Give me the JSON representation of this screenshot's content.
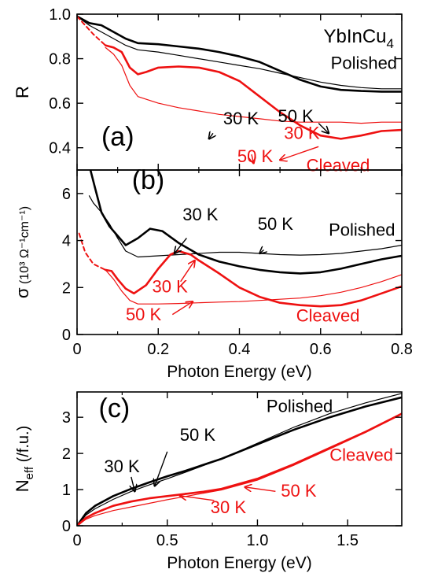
{
  "chart_data": [
    {
      "panel": "(a)",
      "type": "line",
      "title": "YbInCu",
      "title_sub": "4",
      "ylabel": "R",
      "xlabel": "",
      "xlim": [
        0,
        0.8
      ],
      "ylim": [
        0.3,
        1.0
      ],
      "yticks": [
        0.4,
        0.6,
        0.8,
        1.0
      ],
      "ytick_labels": [
        "0.4",
        "0.6",
        "0.8",
        "1.0"
      ],
      "xticks": [
        0,
        0.2,
        0.4,
        0.6,
        0.8
      ],
      "series": [
        {
          "name": "Polished 30 K",
          "color": "#000000",
          "width": 2.6,
          "x": [
            0,
            0.03,
            0.06,
            0.09,
            0.12,
            0.15,
            0.2,
            0.25,
            0.3,
            0.35,
            0.4,
            0.45,
            0.5,
            0.55,
            0.6,
            0.65,
            0.7,
            0.75,
            0.8
          ],
          "y": [
            0.99,
            0.96,
            0.95,
            0.92,
            0.89,
            0.87,
            0.865,
            0.855,
            0.845,
            0.83,
            0.81,
            0.785,
            0.745,
            0.705,
            0.675,
            0.66,
            0.655,
            0.652,
            0.652
          ]
        },
        {
          "name": "Polished 50 K",
          "color": "#000000",
          "width": 1.2,
          "x": [
            0,
            0.03,
            0.06,
            0.09,
            0.12,
            0.15,
            0.2,
            0.25,
            0.3,
            0.35,
            0.4,
            0.45,
            0.5,
            0.55,
            0.6,
            0.65,
            0.7,
            0.75,
            0.8
          ],
          "y": [
            0.99,
            0.95,
            0.92,
            0.89,
            0.86,
            0.84,
            0.83,
            0.815,
            0.8,
            0.785,
            0.77,
            0.755,
            0.735,
            0.715,
            0.695,
            0.68,
            0.67,
            0.665,
            0.665
          ]
        },
        {
          "name": "Cleaved 30 K",
          "color": "#ee1111",
          "width": 2.6,
          "x": [
            0.07,
            0.09,
            0.11,
            0.13,
            0.15,
            0.17,
            0.2,
            0.25,
            0.3,
            0.35,
            0.4,
            0.45,
            0.5,
            0.55,
            0.6,
            0.65,
            0.7,
            0.75,
            0.8
          ],
          "y": [
            0.86,
            0.85,
            0.83,
            0.76,
            0.73,
            0.74,
            0.76,
            0.765,
            0.76,
            0.74,
            0.7,
            0.63,
            0.56,
            0.5,
            0.455,
            0.44,
            0.455,
            0.475,
            0.48
          ]
        },
        {
          "name": "Cleaved 50 K",
          "color": "#ee1111",
          "width": 1.2,
          "x": [
            0.07,
            0.09,
            0.11,
            0.13,
            0.15,
            0.2,
            0.25,
            0.3,
            0.35,
            0.4,
            0.45,
            0.5,
            0.55,
            0.6,
            0.65,
            0.7,
            0.75,
            0.8
          ],
          "y": [
            0.85,
            0.82,
            0.77,
            0.68,
            0.63,
            0.6,
            0.58,
            0.565,
            0.55,
            0.54,
            0.53,
            0.52,
            0.515,
            0.515,
            0.515,
            0.51,
            0.515,
            0.515
          ]
        },
        {
          "name": "Cleaved extrapolation",
          "color": "#ee1111",
          "width": 2.0,
          "dash": "5,4",
          "x": [
            0,
            0.02,
            0.04,
            0.07
          ],
          "y": [
            0.99,
            0.95,
            0.91,
            0.86
          ]
        }
      ],
      "annotations": [
        {
          "text": "(a)",
          "color": "#000000",
          "size": 34,
          "x": 0.06,
          "y": 0.41
        },
        {
          "text": "Polished",
          "color": "#000000",
          "size": 22,
          "x": 0.625,
          "y": 0.755
        },
        {
          "text": "Cleaved",
          "color": "#ee1111",
          "size": 22,
          "x": 0.565,
          "y": 0.295
        },
        {
          "text": "30 K",
          "color": "#000000",
          "size": 22,
          "x": 0.36,
          "y": 0.505
        },
        {
          "text": "50 K",
          "color": "#000000",
          "size": 22,
          "x": 0.495,
          "y": 0.515
        },
        {
          "text": "30 K",
          "color": "#ee1111",
          "size": 22,
          "x": 0.51,
          "y": 0.44
        },
        {
          "text": "50 K",
          "color": "#ee1111",
          "size": 22,
          "x": 0.395,
          "y": 0.335
        }
      ],
      "arrows": [
        {
          "color": "#000000",
          "x1": 0.335,
          "y1": 0.465,
          "x2": 0.325,
          "y2": 0.44
        },
        {
          "color": "#000000",
          "x1": 0.595,
          "y1": 0.51,
          "x2": 0.62,
          "y2": 0.465
        },
        {
          "color": "#ee1111",
          "x1": 0.595,
          "y1": 0.405,
          "x2": 0.5,
          "y2": 0.345
        },
        {
          "color": "#ee1111",
          "x1": 0.43,
          "y1": 0.37,
          "x2": 0.435,
          "y2": 0.33
        }
      ]
    },
    {
      "panel": "(b)",
      "type": "line",
      "ylabel": "σ",
      "yunit": "(10³ Ω⁻¹cm⁻¹)",
      "xlabel": "Photon Energy (eV)",
      "xlim": [
        0,
        0.8
      ],
      "ylim": [
        0,
        7
      ],
      "yticks": [
        0,
        2,
        4,
        6
      ],
      "ytick_labels": [
        "0",
        "2",
        "4",
        "6"
      ],
      "xticks": [
        0,
        0.2,
        0.4,
        0.6,
        0.8
      ],
      "xtick_labels": [
        "0",
        "0.2",
        "0.4",
        "0.6",
        "0.8"
      ],
      "series": [
        {
          "name": "Polished 30 K",
          "color": "#000000",
          "width": 2.6,
          "x": [
            0.03,
            0.045,
            0.06,
            0.08,
            0.1,
            0.12,
            0.15,
            0.18,
            0.21,
            0.25,
            0.3,
            0.35,
            0.4,
            0.45,
            0.5,
            0.55,
            0.6,
            0.65,
            0.7,
            0.75,
            0.8
          ],
          "y": [
            7.2,
            6.2,
            5.2,
            4.6,
            4.2,
            3.8,
            4.1,
            4.5,
            4.4,
            3.9,
            3.4,
            3.1,
            2.9,
            2.75,
            2.65,
            2.6,
            2.65,
            2.8,
            3.0,
            3.2,
            3.35
          ]
        },
        {
          "name": "Polished 50 K",
          "color": "#000000",
          "width": 1.2,
          "x": [
            0.03,
            0.04,
            0.06,
            0.08,
            0.1,
            0.12,
            0.15,
            0.2,
            0.25,
            0.3,
            0.35,
            0.4,
            0.45,
            0.5,
            0.55,
            0.6,
            0.65,
            0.7,
            0.75,
            0.8
          ],
          "y": [
            5.9,
            5.6,
            5.2,
            4.7,
            4.1,
            3.55,
            3.3,
            3.35,
            3.4,
            3.45,
            3.5,
            3.5,
            3.45,
            3.4,
            3.38,
            3.4,
            3.45,
            3.55,
            3.65,
            3.8
          ]
        },
        {
          "name": "Cleaved 30 K",
          "color": "#ee1111",
          "width": 2.6,
          "x": [
            0.07,
            0.085,
            0.1,
            0.12,
            0.14,
            0.17,
            0.2,
            0.23,
            0.25,
            0.28,
            0.3,
            0.35,
            0.4,
            0.45,
            0.5,
            0.55,
            0.6,
            0.65,
            0.7,
            0.75,
            0.8
          ],
          "y": [
            2.75,
            2.7,
            2.35,
            1.95,
            1.75,
            2.1,
            2.8,
            3.4,
            3.55,
            3.4,
            3.15,
            2.6,
            2.0,
            1.6,
            1.35,
            1.25,
            1.2,
            1.25,
            1.45,
            1.75,
            2.05
          ]
        },
        {
          "name": "Cleaved 50 K",
          "color": "#ee1111",
          "width": 1.2,
          "x": [
            0.07,
            0.09,
            0.11,
            0.13,
            0.15,
            0.2,
            0.25,
            0.3,
            0.35,
            0.4,
            0.45,
            0.5,
            0.55,
            0.6,
            0.65,
            0.7,
            0.75,
            0.8
          ],
          "y": [
            2.75,
            2.35,
            1.85,
            1.45,
            1.3,
            1.3,
            1.32,
            1.35,
            1.38,
            1.4,
            1.45,
            1.5,
            1.55,
            1.65,
            1.8,
            2.0,
            2.25,
            2.55
          ]
        },
        {
          "name": "Cleaved extrapolation",
          "color": "#ee1111",
          "width": 2.0,
          "dash": "5,4",
          "x": [
            0.005,
            0.02,
            0.04,
            0.07
          ],
          "y": [
            4.3,
            3.5,
            3.0,
            2.75
          ]
        }
      ],
      "annotations": [
        {
          "text": "(b)",
          "color": "#000000",
          "size": 34,
          "x": 0.135,
          "y": 6.2
        },
        {
          "text": "Polished",
          "color": "#000000",
          "size": 22,
          "x": 0.62,
          "y": 4.2
        },
        {
          "text": "Cleaved",
          "color": "#ee1111",
          "size": 22,
          "x": 0.54,
          "y": 0.55
        },
        {
          "text": "30 K",
          "color": "#000000",
          "size": 22,
          "x": 0.26,
          "y": 4.85
        },
        {
          "text": "50 K",
          "color": "#000000",
          "size": 22,
          "x": 0.445,
          "y": 4.45
        },
        {
          "text": "30 K",
          "color": "#ee1111",
          "size": 22,
          "x": 0.185,
          "y": 1.8
        },
        {
          "text": "50 K",
          "color": "#ee1111",
          "size": 22,
          "x": 0.12,
          "y": 0.6
        }
      ],
      "arrows": [
        {
          "color": "#000000",
          "x1": 0.27,
          "y1": 4.1,
          "x2": 0.24,
          "y2": 3.45
        },
        {
          "color": "#000000",
          "x1": 0.46,
          "y1": 3.6,
          "x2": 0.45,
          "y2": 3.45
        },
        {
          "color": "#ee1111",
          "x1": 0.255,
          "y1": 2.25,
          "x2": 0.29,
          "y2": 3.15
        },
        {
          "color": "#ee1111",
          "x1": 0.235,
          "y1": 0.85,
          "x2": 0.285,
          "y2": 1.4
        }
      ]
    },
    {
      "panel": "(c)",
      "type": "line",
      "ylabel": "N",
      "ylabel_sub": "eff",
      "yunit": "(/f.u.)",
      "xlabel": "Photon Energy (eV)",
      "xlim": [
        0,
        1.8
      ],
      "ylim": [
        0,
        3.7
      ],
      "yticks": [
        0,
        1,
        2,
        3
      ],
      "ytick_labels": [
        "0",
        "1",
        "2",
        "3"
      ],
      "xticks": [
        0,
        0.5,
        1.0,
        1.5
      ],
      "xtick_labels": [
        "0",
        "0.5",
        "1.0",
        "1.5"
      ],
      "series": [
        {
          "name": "Polished 30 K",
          "color": "#000000",
          "width": 2.6,
          "x": [
            0,
            0.05,
            0.1,
            0.2,
            0.3,
            0.4,
            0.5,
            0.6,
            0.8,
            1.0,
            1.2,
            1.4,
            1.6,
            1.8
          ],
          "y": [
            0,
            0.35,
            0.55,
            0.82,
            1.02,
            1.2,
            1.37,
            1.52,
            1.85,
            2.25,
            2.65,
            3.0,
            3.3,
            3.55
          ]
        },
        {
          "name": "Polished 50 K",
          "color": "#000000",
          "width": 1.2,
          "x": [
            0,
            0.05,
            0.1,
            0.2,
            0.3,
            0.4,
            0.5,
            0.6,
            0.8,
            1.0,
            1.2,
            1.4,
            1.6,
            1.8
          ],
          "y": [
            0,
            0.3,
            0.47,
            0.73,
            0.95,
            1.13,
            1.3,
            1.48,
            1.85,
            2.28,
            2.72,
            3.1,
            3.4,
            3.66
          ]
        },
        {
          "name": "Cleaved 30 K",
          "color": "#ee1111",
          "width": 2.6,
          "x": [
            0,
            0.05,
            0.1,
            0.2,
            0.3,
            0.4,
            0.5,
            0.6,
            0.7,
            0.8,
            1.0,
            1.2,
            1.4,
            1.6,
            1.8
          ],
          "y": [
            0,
            0.22,
            0.35,
            0.55,
            0.67,
            0.76,
            0.82,
            0.88,
            0.94,
            1.02,
            1.3,
            1.7,
            2.15,
            2.6,
            3.1
          ]
        },
        {
          "name": "Cleaved 50 K",
          "color": "#ee1111",
          "width": 1.2,
          "x": [
            0,
            0.05,
            0.1,
            0.2,
            0.3,
            0.4,
            0.5,
            0.6,
            0.7,
            0.8,
            1.0,
            1.2,
            1.4,
            1.6,
            1.8
          ],
          "y": [
            0,
            0.18,
            0.28,
            0.42,
            0.52,
            0.62,
            0.72,
            0.81,
            0.9,
            0.99,
            1.26,
            1.67,
            2.12,
            2.58,
            3.08
          ]
        }
      ],
      "annotations": [
        {
          "text": "(c)",
          "color": "#000000",
          "size": 34,
          "x": 0.12,
          "y": 3.0
        },
        {
          "text": "Polished",
          "color": "#000000",
          "size": 22,
          "x": 1.05,
          "y": 3.15
        },
        {
          "text": "Cleaved",
          "color": "#ee1111",
          "size": 22,
          "x": 1.4,
          "y": 1.8
        },
        {
          "text": "30 K",
          "color": "#000000",
          "size": 22,
          "x": 0.15,
          "y": 1.48
        },
        {
          "text": "50 K",
          "color": "#000000",
          "size": 22,
          "x": 0.57,
          "y": 2.35
        },
        {
          "text": "30 K",
          "color": "#ee1111",
          "size": 22,
          "x": 0.74,
          "y": 0.35
        },
        {
          "text": "50 K",
          "color": "#ee1111",
          "size": 22,
          "x": 1.13,
          "y": 0.8
        }
      ],
      "arrows": [
        {
          "color": "#000000",
          "x1": 0.3,
          "y1": 1.35,
          "x2": 0.32,
          "y2": 0.95
        },
        {
          "color": "#000000",
          "x1": 0.5,
          "y1": 2.05,
          "x2": 0.43,
          "y2": 1.1
        },
        {
          "color": "#ee1111",
          "x1": 0.76,
          "y1": 0.7,
          "x2": 0.57,
          "y2": 0.83
        },
        {
          "color": "#ee1111",
          "x1": 1.1,
          "y1": 0.95,
          "x2": 0.93,
          "y2": 1.07
        }
      ]
    }
  ]
}
